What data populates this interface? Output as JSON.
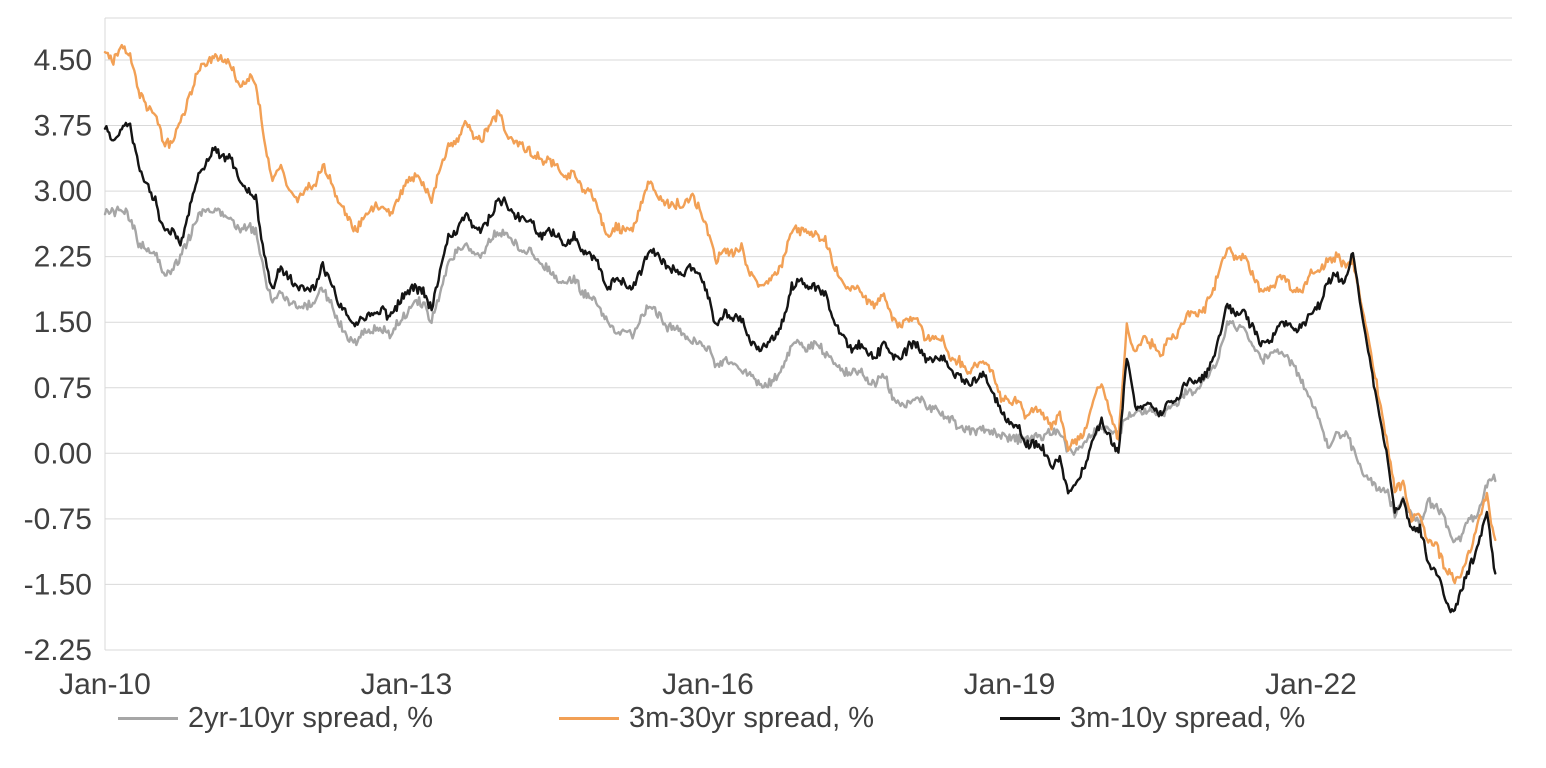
{
  "chart_data": {
    "type": "line",
    "title": "",
    "xlabel": "",
    "ylabel": "",
    "ylim": [
      -2.25,
      4.98
    ],
    "y_ticks": [
      4.5,
      3.75,
      3.0,
      2.25,
      1.5,
      0.75,
      0.0,
      -0.75,
      -1.5,
      -2.25
    ],
    "x_tick_labels": [
      "Jan-10",
      "Jan-13",
      "Jan-16",
      "Jan-19",
      "Jan-22"
    ],
    "x_tick_month_index": [
      0,
      36,
      72,
      108,
      144
    ],
    "x_frequency": "monthly",
    "x_start": "Jan-2010",
    "x_end": "Nov-2023",
    "months_span": 168,
    "grid": "horizontal",
    "legend_position": "bottom",
    "axis_text_color": "#404040",
    "gridline_color": "#d9d9d9",
    "series": [
      {
        "name": "2yr-10yr spread, %",
        "color": "#a6a6a6",
        "values": [
          2.8,
          2.75,
          2.8,
          2.7,
          2.4,
          2.35,
          2.3,
          2.05,
          2.1,
          2.25,
          2.45,
          2.7,
          2.75,
          2.8,
          2.75,
          2.65,
          2.55,
          2.6,
          2.55,
          2.05,
          1.7,
          1.85,
          1.75,
          1.65,
          1.7,
          1.7,
          1.9,
          1.7,
          1.5,
          1.35,
          1.25,
          1.4,
          1.4,
          1.45,
          1.35,
          1.5,
          1.6,
          1.75,
          1.7,
          1.5,
          1.85,
          2.15,
          2.3,
          2.4,
          2.3,
          2.25,
          2.45,
          2.55,
          2.5,
          2.4,
          2.3,
          2.3,
          2.15,
          2.1,
          2.0,
          1.95,
          2.0,
          1.85,
          1.8,
          1.65,
          1.5,
          1.4,
          1.4,
          1.35,
          1.55,
          1.7,
          1.6,
          1.45,
          1.45,
          1.4,
          1.3,
          1.3,
          1.2,
          1.0,
          1.05,
          1.05,
          0.95,
          0.9,
          0.8,
          0.8,
          0.85,
          1.0,
          1.25,
          1.25,
          1.2,
          1.25,
          1.15,
          1.05,
          0.95,
          0.9,
          0.95,
          0.85,
          0.8,
          0.9,
          0.65,
          0.55,
          0.55,
          0.65,
          0.55,
          0.5,
          0.45,
          0.4,
          0.3,
          0.25,
          0.25,
          0.3,
          0.25,
          0.2,
          0.17,
          0.17,
          0.15,
          0.2,
          0.2,
          0.25,
          0.23,
          0.02,
          0.05,
          0.15,
          0.22,
          0.3,
          0.25,
          0.2,
          0.45,
          0.45,
          0.5,
          0.5,
          0.45,
          0.5,
          0.55,
          0.7,
          0.7,
          0.8,
          0.95,
          1.1,
          1.5,
          1.45,
          1.45,
          1.25,
          1.05,
          1.1,
          1.2,
          1.1,
          1.0,
          0.8,
          0.6,
          0.4,
          0.05,
          0.2,
          0.25,
          0.05,
          -0.2,
          -0.3,
          -0.4,
          -0.4,
          -0.7,
          -0.55,
          -0.7,
          -0.8,
          -0.55,
          -0.6,
          -0.75,
          -1.0,
          -0.95,
          -0.75,
          -0.7,
          -0.35,
          -0.3
        ]
      },
      {
        "name": "3m-30yr spread, %",
        "color": "#f2a055",
        "values": [
          4.6,
          4.5,
          4.65,
          4.55,
          4.15,
          3.95,
          3.9,
          3.55,
          3.55,
          3.8,
          4.05,
          4.35,
          4.45,
          4.55,
          4.5,
          4.45,
          4.2,
          4.3,
          4.25,
          3.6,
          3.1,
          3.3,
          3.0,
          2.9,
          3.05,
          3.05,
          3.3,
          3.1,
          2.85,
          2.7,
          2.55,
          2.7,
          2.8,
          2.85,
          2.75,
          2.9,
          3.1,
          3.15,
          3.1,
          2.9,
          3.25,
          3.5,
          3.6,
          3.75,
          3.65,
          3.6,
          3.75,
          3.9,
          3.65,
          3.55,
          3.5,
          3.45,
          3.35,
          3.35,
          3.3,
          3.15,
          3.2,
          3.0,
          3.0,
          2.75,
          2.45,
          2.6,
          2.55,
          2.55,
          2.85,
          3.1,
          2.95,
          2.85,
          2.85,
          2.85,
          2.95,
          2.8,
          2.55,
          2.2,
          2.35,
          2.3,
          2.35,
          2.05,
          1.95,
          1.95,
          2.05,
          2.2,
          2.55,
          2.55,
          2.5,
          2.5,
          2.45,
          2.15,
          2.0,
          1.85,
          1.9,
          1.75,
          1.7,
          1.8,
          1.55,
          1.45,
          1.55,
          1.5,
          1.3,
          1.35,
          1.3,
          1.1,
          1.05,
          0.95,
          1.0,
          1.05,
          0.9,
          0.65,
          0.6,
          0.6,
          0.4,
          0.5,
          0.45,
          0.3,
          0.45,
          0.05,
          0.15,
          0.25,
          0.65,
          0.8,
          0.45,
          0.15,
          1.45,
          1.15,
          1.3,
          1.25,
          1.1,
          1.3,
          1.35,
          1.55,
          1.6,
          1.6,
          1.8,
          2.05,
          2.35,
          2.25,
          2.25,
          2.05,
          1.85,
          1.85,
          2.0,
          2.0,
          1.85,
          1.85,
          2.05,
          2.1,
          2.2,
          2.25,
          2.15,
          2.2,
          1.7,
          1.25,
          0.7,
          0.15,
          -0.4,
          -0.35,
          -0.75,
          -0.7,
          -1.05,
          -1.05,
          -1.3,
          -1.45,
          -1.35,
          -1.1,
          -0.8,
          -0.45,
          -1.05
        ]
      },
      {
        "name": "3m-10y spread, %",
        "color": "#141414",
        "values": [
          3.7,
          3.6,
          3.7,
          3.75,
          3.3,
          3.05,
          2.9,
          2.55,
          2.55,
          2.4,
          2.75,
          3.15,
          3.3,
          3.5,
          3.4,
          3.4,
          3.1,
          3.0,
          2.95,
          2.25,
          1.9,
          2.15,
          2.0,
          1.9,
          1.9,
          1.9,
          2.15,
          1.95,
          1.7,
          1.55,
          1.45,
          1.55,
          1.6,
          1.65,
          1.55,
          1.7,
          1.85,
          1.9,
          1.85,
          1.65,
          2.1,
          2.45,
          2.55,
          2.75,
          2.6,
          2.55,
          2.7,
          2.9,
          2.85,
          2.7,
          2.7,
          2.65,
          2.5,
          2.55,
          2.5,
          2.4,
          2.5,
          2.3,
          2.3,
          2.15,
          1.85,
          2.0,
          1.95,
          1.9,
          2.1,
          2.35,
          2.25,
          2.15,
          2.1,
          2.05,
          2.15,
          2.05,
          1.8,
          1.45,
          1.6,
          1.55,
          1.55,
          1.3,
          1.2,
          1.25,
          1.35,
          1.5,
          1.9,
          2.0,
          1.9,
          1.9,
          1.85,
          1.5,
          1.35,
          1.2,
          1.25,
          1.15,
          1.1,
          1.25,
          1.1,
          1.05,
          1.25,
          1.25,
          1.05,
          1.1,
          1.1,
          0.95,
          0.9,
          0.8,
          0.85,
          0.9,
          0.7,
          0.45,
          0.35,
          0.3,
          0.1,
          0.1,
          0.05,
          -0.15,
          -0.05,
          -0.45,
          -0.3,
          -0.15,
          0.2,
          0.35,
          0.2,
          0.0,
          1.1,
          0.55,
          0.55,
          0.55,
          0.45,
          0.6,
          0.6,
          0.8,
          0.8,
          0.85,
          1.0,
          1.3,
          1.7,
          1.6,
          1.6,
          1.45,
          1.25,
          1.25,
          1.45,
          1.5,
          1.4,
          1.45,
          1.6,
          1.7,
          1.95,
          2.05,
          1.9,
          2.3,
          1.6,
          1.1,
          0.55,
          0.0,
          -0.7,
          -0.55,
          -0.9,
          -0.85,
          -1.25,
          -1.35,
          -1.65,
          -1.85,
          -1.55,
          -1.3,
          -1.05,
          -0.65,
          -1.4
        ]
      }
    ]
  }
}
